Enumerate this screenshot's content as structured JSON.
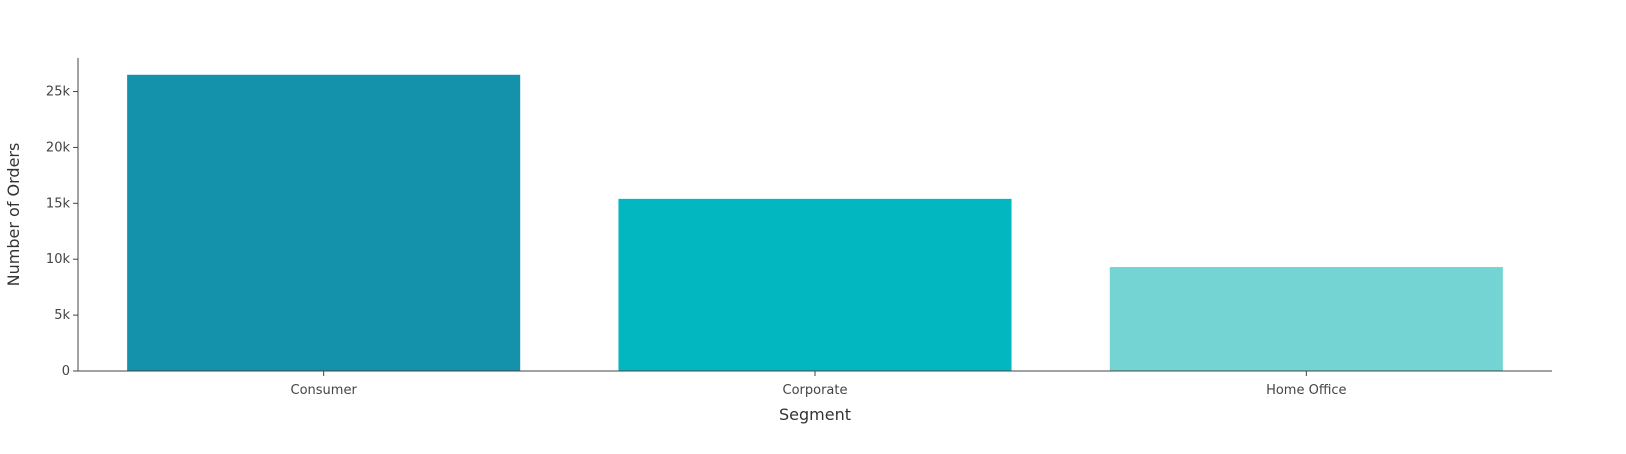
{
  "chart_data": {
    "type": "bar",
    "title": "",
    "xlabel": "Segment",
    "ylabel": "Number of Orders",
    "categories": [
      "Consumer",
      "Corporate",
      "Home Office"
    ],
    "values": [
      26500,
      15400,
      9300
    ],
    "ylim": [
      0,
      28000
    ],
    "yticks": [
      0,
      5000,
      10000,
      15000,
      20000,
      25000
    ],
    "ytick_labels": [
      "0",
      "5k",
      "10k",
      "15k",
      "20k",
      "25k"
    ],
    "bar_colors": [
      "#1492ab",
      "#03b7c0",
      "#74d4d3"
    ],
    "grid": false,
    "legend": "none"
  }
}
